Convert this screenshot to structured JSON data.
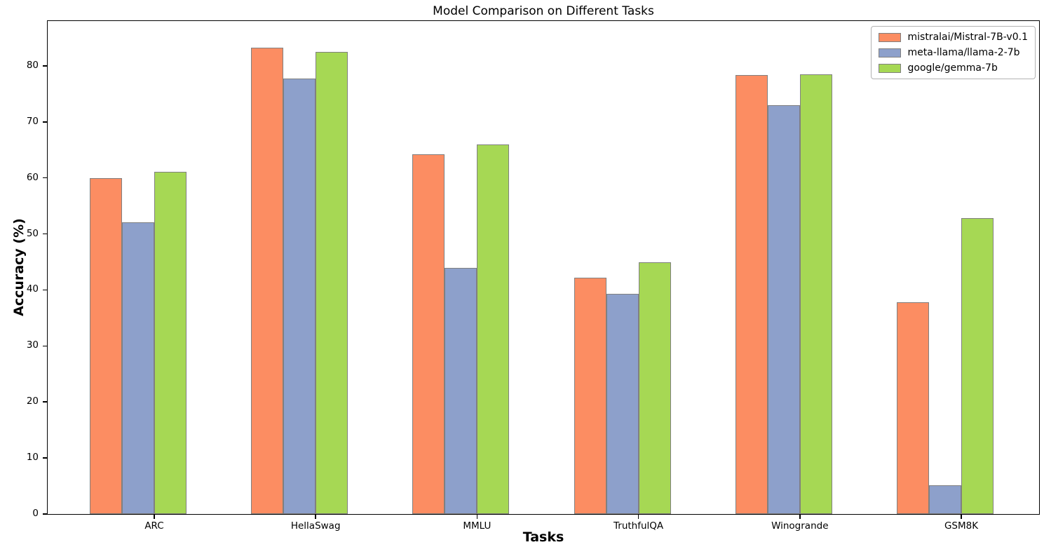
{
  "chart_data": {
    "type": "bar",
    "title": "Model Comparison on Different Tasks",
    "xlabel": "Tasks",
    "ylabel": "Accuracy (%)",
    "categories": [
      "ARC",
      "HellaSwag",
      "MMLU",
      "TruthfulQA",
      "Winogrande",
      "GSM8K"
    ],
    "series": [
      {
        "name": "mistralai/Mistral-7B-v0.1",
        "color": "#FC8D62",
        "values": [
          60.0,
          83.3,
          64.2,
          42.2,
          78.4,
          37.8
        ]
      },
      {
        "name": "meta-llama/llama-2-7b",
        "color": "#8DA0CB",
        "values": [
          52.1,
          77.7,
          44.0,
          39.3,
          73.0,
          5.2
        ]
      },
      {
        "name": "google/gemma-7b",
        "color": "#A6D854",
        "values": [
          61.1,
          82.5,
          66.0,
          44.9,
          78.5,
          52.8
        ]
      }
    ],
    "ylim": [
      0,
      88
    ],
    "yticks": [
      0,
      10,
      20,
      30,
      40,
      50,
      60,
      70,
      80
    ],
    "bar_edge_color": "#808080",
    "axis_color": "#000000",
    "legend_position": "upper right",
    "grid": false
  }
}
